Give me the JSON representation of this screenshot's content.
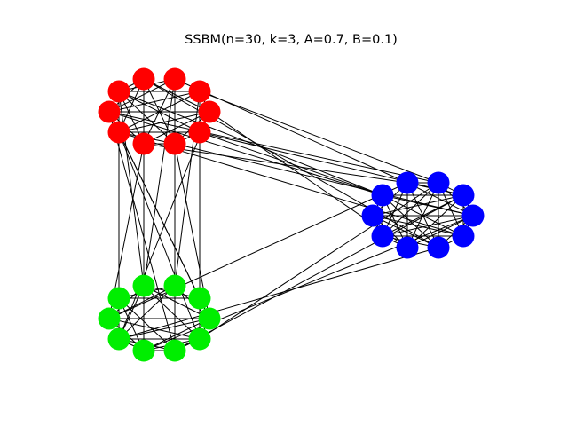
{
  "title": "SSBM(n=30, k=3, A=0.7, B=0.1)",
  "graph": {
    "n": 30,
    "k": 3,
    "A": 0.7,
    "B": 0.1,
    "communities": [
      {
        "name": "red",
        "color": "#ff0000",
        "nodes": [
          0,
          1,
          2,
          3,
          4,
          5,
          6,
          7,
          8,
          9
        ]
      },
      {
        "name": "blue",
        "color": "#0000ff",
        "nodes": [
          10,
          11,
          12,
          13,
          14,
          15,
          16,
          17,
          18,
          19
        ]
      },
      {
        "name": "green",
        "color": "#00ee00",
        "nodes": [
          20,
          21,
          22,
          23,
          24,
          25,
          26,
          27,
          28,
          29
        ]
      }
    ],
    "inter_edges": [
      [
        0,
        10
      ],
      [
        2,
        11
      ],
      [
        3,
        12
      ],
      [
        5,
        13
      ],
      [
        6,
        14
      ],
      [
        8,
        15
      ],
      [
        9,
        10
      ],
      [
        1,
        16
      ],
      [
        4,
        17
      ],
      [
        7,
        11
      ],
      [
        9,
        12
      ],
      [
        5,
        10
      ],
      [
        0,
        20
      ],
      [
        2,
        21
      ],
      [
        3,
        22
      ],
      [
        5,
        23
      ],
      [
        6,
        24
      ],
      [
        8,
        25
      ],
      [
        9,
        26
      ],
      [
        1,
        27
      ],
      [
        4,
        28
      ],
      [
        7,
        29
      ],
      [
        0,
        21
      ],
      [
        6,
        22
      ],
      [
        8,
        23
      ],
      [
        9,
        24
      ],
      [
        13,
        26
      ],
      [
        14,
        27
      ],
      [
        16,
        28
      ],
      [
        11,
        29
      ],
      [
        12,
        25
      ]
    ]
  }
}
